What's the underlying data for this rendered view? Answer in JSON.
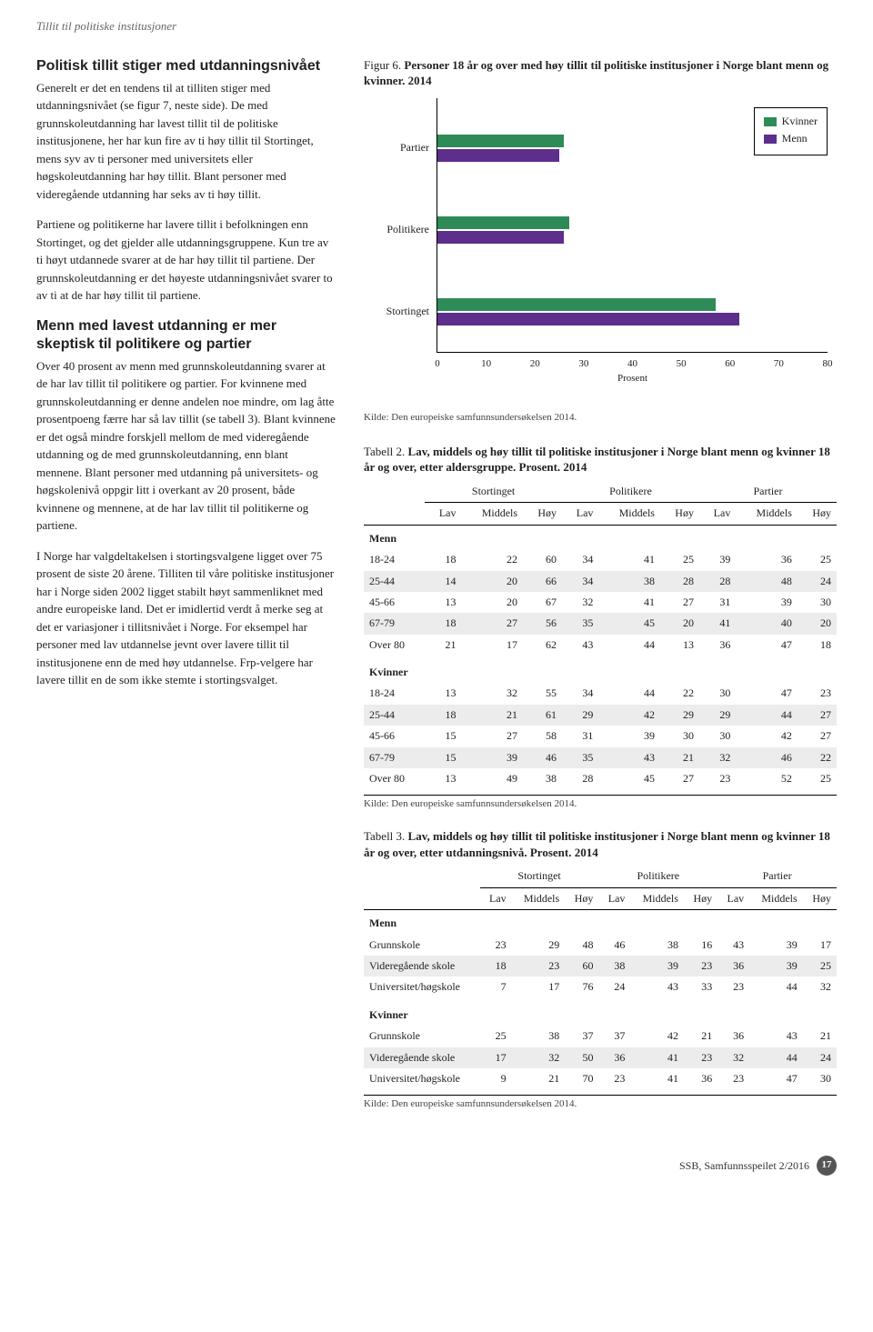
{
  "header": "Tillit til politiske institusjoner",
  "left": {
    "h1": "Politisk tillit stiger med utdanningsnivået",
    "p1": "Generelt er det en tendens til at tilliten stiger med utdanningsnivået (se figur 7, neste side). De med grunnskoleutdanning har lavest tillit til de politiske institusjonene, her har kun fire av ti høy tillit til Stortinget, mens syv av ti personer med universitets eller høgskoleutdanning har høy tillit. Blant personer med videregående utdanning har seks av ti høy tillit.",
    "p2": "Partiene og politikerne har lavere tillit i befolkningen enn Stortinget, og det gjelder alle utdanningsgruppene. Kun tre av ti høyt utdannede svarer at de har høy tillit til partiene. Der grunnskoleutdanning er det høyeste utdanningsnivået svarer to av ti at de har høy tillit til partiene.",
    "h2": "Menn med lavest utdanning er mer skeptisk til politikere og partier",
    "p3": "Over 40 prosent av menn med grunnskoleutdanning svarer at de har lav tillit til politikere og partier. For kvinnene med grunnskoleutdanning er denne andelen noe mindre, om lag åtte prosentpoeng færre har så lav tillit (se tabell 3). Blant kvinnene er det også mindre forskjell mellom de med videregående utdanning og de med grunnskoleutdanning, enn blant mennene. Blant personer med utdanning på universitets- og høgskolenivå oppgir litt i overkant av 20 prosent, både kvinnene og mennene, at de har lav tillit til politikerne og partiene.",
    "p4": "I Norge har valgdeltakelsen i stortingsvalgene ligget over 75 prosent de siste 20 årene. Tilliten til våre politiske institusjoner har i Norge siden 2002 ligget stabilt høyt sammenliknet med andre europeiske land. Det er imidlertid verdt å merke seg at det er variasjoner i tillitsnivået i Norge. For eksempel har personer med lav utdannelse jevnt over lavere tillit til institusjonene enn de med høy utdannelse. Frp-velgere har lavere tillit en de som ikke stemte i stortingsvalget."
  },
  "figure": {
    "ref": "Figur 6.",
    "desc": "Personer 18 år og over med høy tillit til politiske institusjoner i Norge blant menn og kvinner. 2014",
    "categories": [
      "Partier",
      "Politikere",
      "Stortinget"
    ],
    "series": {
      "Kvinner": {
        "color": "#2e8b57",
        "values": [
          26,
          27,
          57
        ]
      },
      "Menn": {
        "color": "#5d2e8c",
        "values": [
          25,
          26,
          62
        ]
      }
    },
    "xmax": 80,
    "xtick_step": 10,
    "xlabel": "Prosent",
    "legend": [
      "Kvinner",
      "Menn"
    ],
    "source": "Kilde: Den europeiske samfunnsundersøkelsen 2014."
  },
  "table2": {
    "ref": "Tabell 2.",
    "desc": "Lav, middels og høy tillit til politiske institusjoner i Norge blant menn og kvinner 18 år og over, etter aldersgruppe. Prosent. 2014",
    "groups": [
      "Stortinget",
      "Politikere",
      "Partier"
    ],
    "sub": [
      "Lav",
      "Middels",
      "Høy"
    ],
    "sections": [
      {
        "name": "Menn",
        "rows": [
          [
            "18-24",
            18,
            22,
            60,
            34,
            41,
            25,
            39,
            36,
            25
          ],
          [
            "25-44",
            14,
            20,
            66,
            34,
            38,
            28,
            28,
            48,
            24
          ],
          [
            "45-66",
            13,
            20,
            67,
            32,
            41,
            27,
            31,
            39,
            30
          ],
          [
            "67-79",
            18,
            27,
            56,
            35,
            45,
            20,
            41,
            40,
            20
          ],
          [
            "Over 80",
            21,
            17,
            62,
            43,
            44,
            13,
            36,
            47,
            18
          ]
        ]
      },
      {
        "name": "Kvinner",
        "rows": [
          [
            "18-24",
            13,
            32,
            55,
            34,
            44,
            22,
            30,
            47,
            23
          ],
          [
            "25-44",
            18,
            21,
            61,
            29,
            42,
            29,
            29,
            44,
            27
          ],
          [
            "45-66",
            15,
            27,
            58,
            31,
            39,
            30,
            30,
            42,
            27
          ],
          [
            "67-79",
            15,
            39,
            46,
            35,
            43,
            21,
            32,
            46,
            22
          ],
          [
            "Over 80",
            13,
            49,
            38,
            28,
            45,
            27,
            23,
            52,
            25
          ]
        ]
      }
    ],
    "source": "Kilde: Den europeiske samfunnsundersøkelsen 2014."
  },
  "table3": {
    "ref": "Tabell 3.",
    "desc": "Lav, middels og høy tillit til politiske institusjoner i Norge blant menn og kvinner 18 år og over, etter utdanningsnivå. Prosent. 2014",
    "groups": [
      "Stortinget",
      "Politikere",
      "Partier"
    ],
    "sub": [
      "Lav",
      "Middels",
      "Høy"
    ],
    "sections": [
      {
        "name": "Menn",
        "rows": [
          [
            "Grunnskole",
            23,
            29,
            48,
            46,
            38,
            16,
            43,
            39,
            17
          ],
          [
            "Videregående skole",
            18,
            23,
            60,
            38,
            39,
            23,
            36,
            39,
            25
          ],
          [
            "Universitet/høgskole",
            7,
            17,
            76,
            24,
            43,
            33,
            23,
            44,
            32
          ]
        ]
      },
      {
        "name": "Kvinner",
        "rows": [
          [
            "Grunnskole",
            25,
            38,
            37,
            37,
            42,
            21,
            36,
            43,
            21
          ],
          [
            "Videregående skole",
            17,
            32,
            50,
            36,
            41,
            23,
            32,
            44,
            24
          ],
          [
            "Universitet/høgskole",
            9,
            21,
            70,
            23,
            41,
            36,
            23,
            47,
            30
          ]
        ]
      }
    ],
    "source": "Kilde: Den europeiske samfunnsundersøkelsen 2014."
  },
  "footer": {
    "text": "SSB, Samfunnsspeilet 2/2016",
    "page": "17"
  }
}
